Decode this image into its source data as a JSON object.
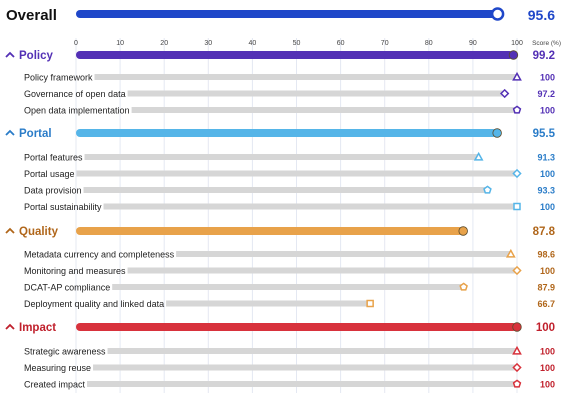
{
  "chart_data": {
    "type": "bar",
    "title": "Overall",
    "overall": {
      "label": "Overall",
      "value": 95.6,
      "value_text": "95.6",
      "color": "#1f47c9"
    },
    "axis": {
      "ticks": [
        0,
        10,
        20,
        30,
        40,
        50,
        60,
        70,
        80,
        90,
        100
      ],
      "tick_labels": [
        "0",
        "10",
        "20",
        "30",
        "40",
        "50",
        "60",
        "70",
        "80",
        "90",
        "100"
      ],
      "xlim": [
        0,
        100
      ],
      "score_label": "Score (%)"
    },
    "sections": [
      {
        "label": "Policy",
        "value": 99.2,
        "value_text": "99.2",
        "color": "#5330b5",
        "marker": "triangle",
        "items": [
          {
            "label": "Policy framework",
            "value": 100,
            "value_text": "100",
            "marker": "triangle"
          },
          {
            "label": "Governance of open data",
            "value": 97.2,
            "value_text": "97.2",
            "marker": "diamond"
          },
          {
            "label": "Open data implementation",
            "value": 100,
            "value_text": "100",
            "marker": "pentagon"
          }
        ]
      },
      {
        "label": "Portal",
        "value": 95.5,
        "value_text": "95.5",
        "color": "#55b5e8",
        "text_color": "#2a7cc8",
        "items": [
          {
            "label": "Portal features",
            "value": 91.3,
            "value_text": "91.3",
            "marker": "triangle"
          },
          {
            "label": "Portal usage",
            "value": 100,
            "value_text": "100",
            "marker": "diamond"
          },
          {
            "label": "Data provision",
            "value": 93.3,
            "value_text": "93.3",
            "marker": "pentagon"
          },
          {
            "label": "Portal sustainability",
            "value": 100,
            "value_text": "100",
            "marker": "square"
          }
        ]
      },
      {
        "label": "Quality",
        "value": 87.8,
        "value_text": "87.8",
        "color": "#e8a24a",
        "text_color": "#b0661a",
        "items": [
          {
            "label": "Metadata currency and completeness",
            "value": 98.6,
            "value_text": "98.6",
            "marker": "triangle"
          },
          {
            "label": "Monitoring and measures",
            "value": 100,
            "value_text": "100",
            "marker": "diamond"
          },
          {
            "label": "DCAT-AP compliance",
            "value": 87.9,
            "value_text": "87.9",
            "marker": "pentagon"
          },
          {
            "label": "Deployment quality and linked data",
            "value": 66.7,
            "value_text": "66.7",
            "marker": "square"
          }
        ]
      },
      {
        "label": "Impact",
        "value": 100,
        "value_text": "100",
        "color": "#d8323c",
        "text_color": "#c0202c",
        "items": [
          {
            "label": "Strategic awareness",
            "value": 100,
            "value_text": "100",
            "marker": "triangle"
          },
          {
            "label": "Measuring reuse",
            "value": 100,
            "value_text": "100",
            "marker": "diamond"
          },
          {
            "label": "Created impact",
            "value": 100,
            "value_text": "100",
            "marker": "pentagon"
          }
        ]
      }
    ]
  }
}
